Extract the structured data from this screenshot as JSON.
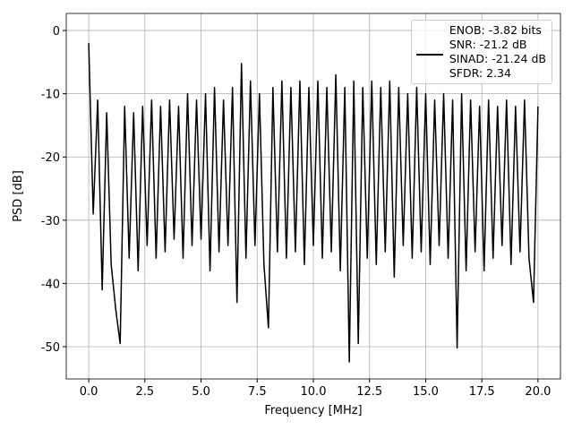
{
  "chart_data": {
    "type": "line",
    "x_label": "Frequency [MHz]",
    "y_label": "PSD [dB]",
    "x": [
      0,
      0.2,
      0.4,
      0.6,
      0.8,
      1.0,
      1.2,
      1.4,
      1.6,
      1.8,
      2.0,
      2.2,
      2.4,
      2.6,
      2.8,
      3.0,
      3.2,
      3.4,
      3.6,
      3.8,
      4.0,
      4.2,
      4.4,
      4.6,
      4.8,
      5.0,
      5.2,
      5.4,
      5.6,
      5.8,
      6.0,
      6.2,
      6.4,
      6.6,
      6.8,
      7.0,
      7.2,
      7.4,
      7.6,
      7.8,
      8.0,
      8.2,
      8.4,
      8.6,
      8.8,
      9.0,
      9.2,
      9.4,
      9.6,
      9.8,
      10.0,
      10.2,
      10.4,
      10.6,
      10.8,
      11.0,
      11.2,
      11.4,
      11.6,
      11.8,
      12.0,
      12.2,
      12.4,
      12.6,
      12.8,
      13.0,
      13.2,
      13.4,
      13.6,
      13.8,
      14.0,
      14.2,
      14.4,
      14.6,
      14.8,
      15.0,
      15.2,
      15.4,
      15.6,
      15.8,
      16.0,
      16.2,
      16.4,
      16.6,
      16.8,
      17.0,
      17.2,
      17.4,
      17.6,
      17.8,
      18.0,
      18.2,
      18.4,
      18.6,
      18.8,
      19.0,
      19.2,
      19.4,
      19.6,
      19.8,
      20.0
    ],
    "series": [
      {
        "name": "ENOB: -3.82 bits\nSNR: -21.2 dB\nSINAD: -21.24 dB\nSFDR: 2.34",
        "color": "#000000",
        "values": [
          -2,
          -29,
          -11,
          -41,
          -13,
          -37,
          -44,
          -49.5,
          -12,
          -36,
          -13,
          -38,
          -12,
          -34,
          -11,
          -36,
          -12,
          -35,
          -11,
          -33,
          -12,
          -36,
          -10,
          -34,
          -11,
          -33,
          -10,
          -38,
          -9,
          -35,
          -11,
          -34,
          -9,
          -43,
          -5.2,
          -36,
          -8,
          -34,
          -10,
          -37,
          -47,
          -9,
          -35,
          -8,
          -36,
          -9,
          -35,
          -8,
          -37,
          -9,
          -34,
          -8,
          -36,
          -9,
          -35,
          -7,
          -38,
          -9,
          -52.4,
          -8,
          -49.5,
          -9,
          -36,
          -8,
          -37,
          -9,
          -35,
          -8,
          -39,
          -9,
          -34,
          -10,
          -36,
          -9,
          -35,
          -10,
          -37,
          -11,
          -34,
          -10,
          -36,
          -11,
          -50.2,
          -10,
          -38,
          -11,
          -35,
          -12,
          -38,
          -11,
          -36,
          -12,
          -34,
          -11,
          -37,
          -12,
          -35,
          -11,
          -36,
          -43,
          -12
        ]
      }
    ],
    "xlim": [
      -1,
      21
    ],
    "ylim": [
      -55.1,
      2.7
    ],
    "xticks": [
      {
        "value": 0,
        "label": "0.0"
      },
      {
        "value": 2.5,
        "label": "2.5"
      },
      {
        "value": 5,
        "label": "5.0"
      },
      {
        "value": 7.5,
        "label": "7.5"
      },
      {
        "value": 10,
        "label": "10.0"
      },
      {
        "value": 12.5,
        "label": "12.5"
      },
      {
        "value": 15,
        "label": "15.0"
      },
      {
        "value": 17.5,
        "label": "17.5"
      },
      {
        "value": 20,
        "label": "20.0"
      }
    ],
    "yticks": [
      0,
      -10,
      -20,
      -30,
      -40,
      -50
    ],
    "grid": true,
    "legend": "upper right"
  }
}
